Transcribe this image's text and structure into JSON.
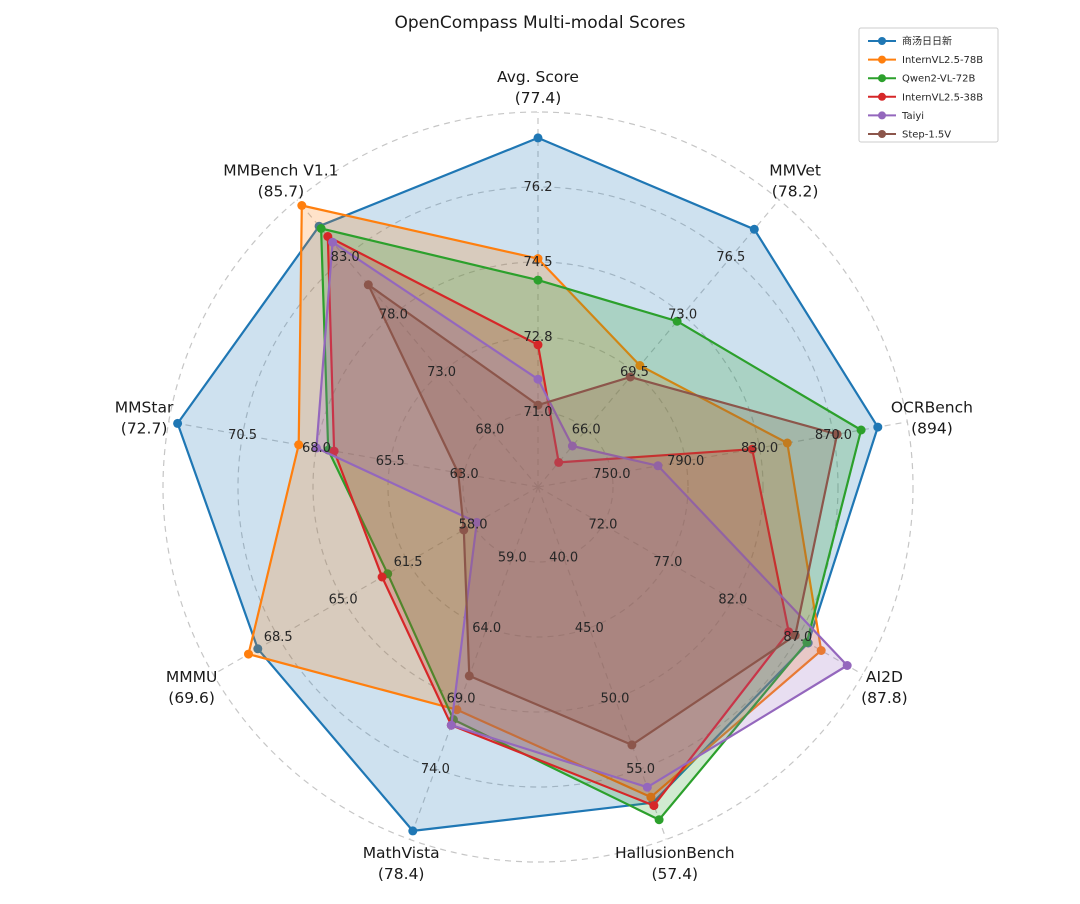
{
  "title": "OpenCompass Multi-modal Scores",
  "chart_data": {
    "type": "radar",
    "title": "OpenCompass Multi-modal Scores",
    "grid": "dashed concentric circles with dashed radial spokes",
    "grid_color": "#c6c6c6",
    "legend_position": "top-right",
    "fill_opacity": 0.22,
    "axes": [
      {
        "name": "Avg. Score",
        "best_label": "(77.4)",
        "range": [
          69.3,
          78.0
        ],
        "grid_ticks": [
          "71.0",
          "72.8",
          "74.5",
          "76.2"
        ]
      },
      {
        "name": "MMVet",
        "best_label": "(78.2)",
        "range": [
          62.5,
          80.0
        ],
        "grid_ticks": [
          "66.0",
          "69.5",
          "73.0",
          "76.5"
        ]
      },
      {
        "name": "OCRBench",
        "best_label": "(894)",
        "range": [
          710,
          910
        ],
        "grid_ticks": [
          "750.0",
          "790.0",
          "830.0",
          "870.0"
        ]
      },
      {
        "name": "AI2D",
        "best_label": "(87.8)",
        "range": [
          67,
          92
        ],
        "grid_ticks": [
          "72.0",
          "77.0",
          "82.0",
          "87.0"
        ]
      },
      {
        "name": "HallusionBench",
        "best_label": "(57.4)",
        "range": [
          35,
          60
        ],
        "grid_ticks": [
          "40.0",
          "45.0",
          "50.0",
          "55.0"
        ]
      },
      {
        "name": "MathVista",
        "best_label": "(78.4)",
        "range": [
          54,
          79
        ],
        "grid_ticks": [
          "59.0",
          "64.0",
          "69.0",
          "74.0"
        ]
      },
      {
        "name": "MMMU",
        "best_label": "(69.6)",
        "range": [
          54.5,
          72
        ],
        "grid_ticks": [
          "58.0",
          "61.5",
          "65.0",
          "68.5"
        ]
      },
      {
        "name": "MMStar",
        "best_label": "(72.7)",
        "range": [
          60.5,
          73
        ],
        "grid_ticks": [
          "63.0",
          "65.5",
          "68.0",
          "70.5"
        ]
      },
      {
        "name": "MMBench V1.1",
        "best_label": "(85.7)",
        "range": [
          63,
          88
        ],
        "grid_ticks": [
          "68.0",
          "73.0",
          "78.0",
          "83.0"
        ]
      }
    ],
    "series": [
      {
        "name": "商汤日日新",
        "color": "#1f77b4",
        "values": [
          77.4,
          78.2,
          894,
          87.8,
          57.4,
          78.4,
          69.6,
          72.7,
          85.7
        ]
      },
      {
        "name": "InternVL2.5-78B",
        "color": "#ff7f0e",
        "values": [
          74.6,
          69.9,
          845,
          88.8,
          57.0,
          69.8,
          70.1,
          68.6,
          87.5
        ]
      },
      {
        "name": "Qwen2-VL-72B",
        "color": "#2ca02c",
        "values": [
          74.1,
          72.6,
          885,
          87.7,
          58.6,
          70.5,
          62.6,
          67.6,
          85.5
        ]
      },
      {
        "name": "InternVL2.5-38B",
        "color": "#d62728",
        "values": [
          72.6,
          64.0,
          826,
          86.3,
          57.6,
          70.9,
          62.9,
          67.4,
          84.8
        ]
      },
      {
        "name": "Taiyi",
        "color": "#9467bd",
        "values": [
          71.8,
          65.0,
          775,
          90.8,
          56.3,
          70.9,
          57.8,
          68.0,
          84.3
        ]
      },
      {
        "name": "Step-1.5V",
        "color": "#8c564b",
        "values": [
          71.2,
          69.2,
          872,
          86.8,
          53.3,
          67.4,
          58.5,
          63.2,
          80.6
        ]
      }
    ]
  }
}
